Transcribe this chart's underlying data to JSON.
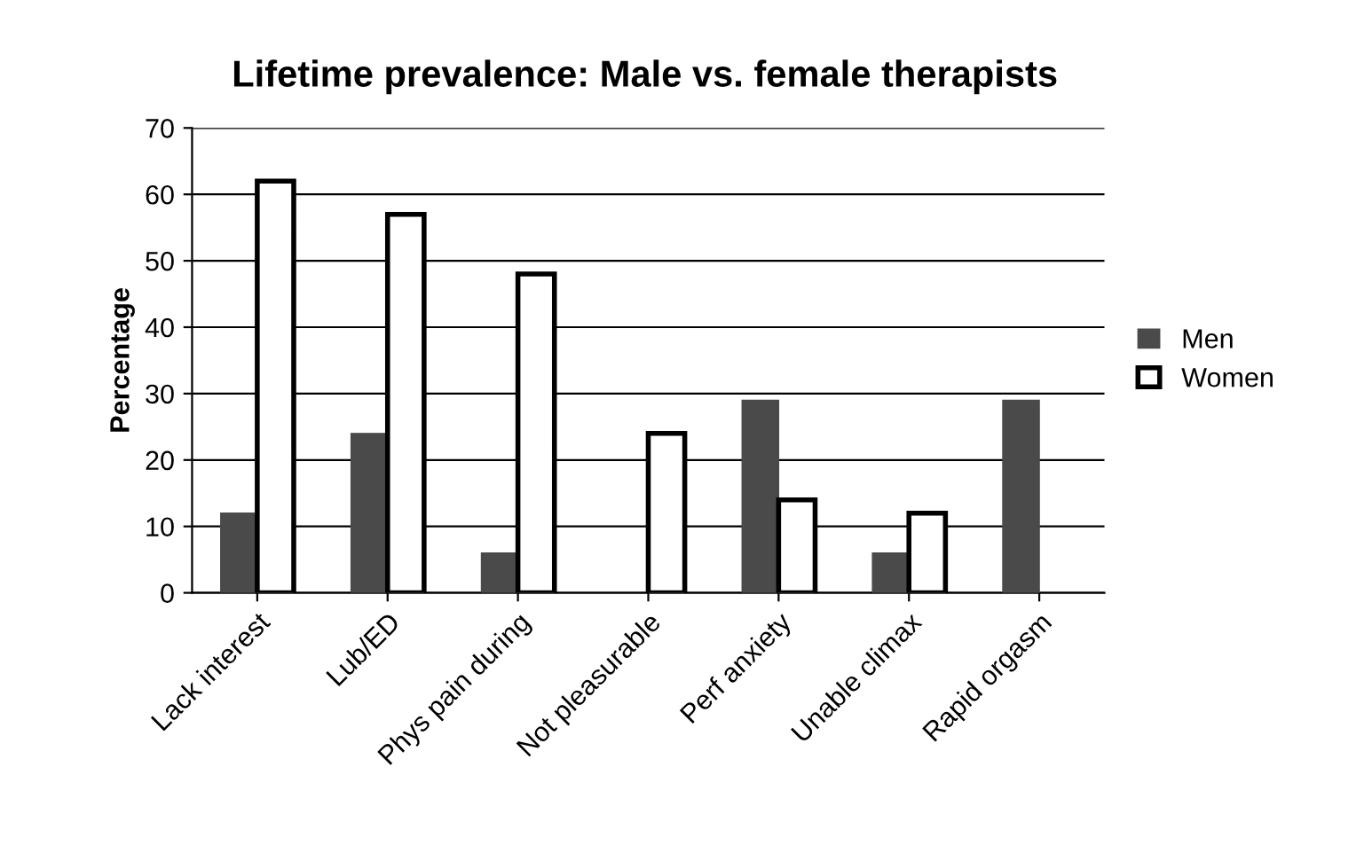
{
  "chart_data": {
    "type": "bar",
    "title": "Lifetime prevalence: Male vs. female therapists",
    "ylabel": "Percentage",
    "categories": [
      "Lack interest",
      "Lub/ED",
      "Phys pain during",
      "Not pleasurable",
      "Perf anxiety",
      "Unable climax",
      "Rapid orgasm"
    ],
    "series": [
      {
        "name": "Men",
        "color": "#4a4a4a",
        "values": [
          12,
          24,
          6,
          null,
          29,
          6,
          29
        ]
      },
      {
        "name": "Women",
        "color": "#ffffff",
        "values": [
          62,
          57,
          48,
          24,
          14,
          12,
          null
        ]
      }
    ],
    "ylim": [
      0,
      70
    ],
    "yticks": [
      0,
      10,
      20,
      30,
      40,
      50,
      60,
      70
    ],
    "grid": "y",
    "legend": "right"
  }
}
